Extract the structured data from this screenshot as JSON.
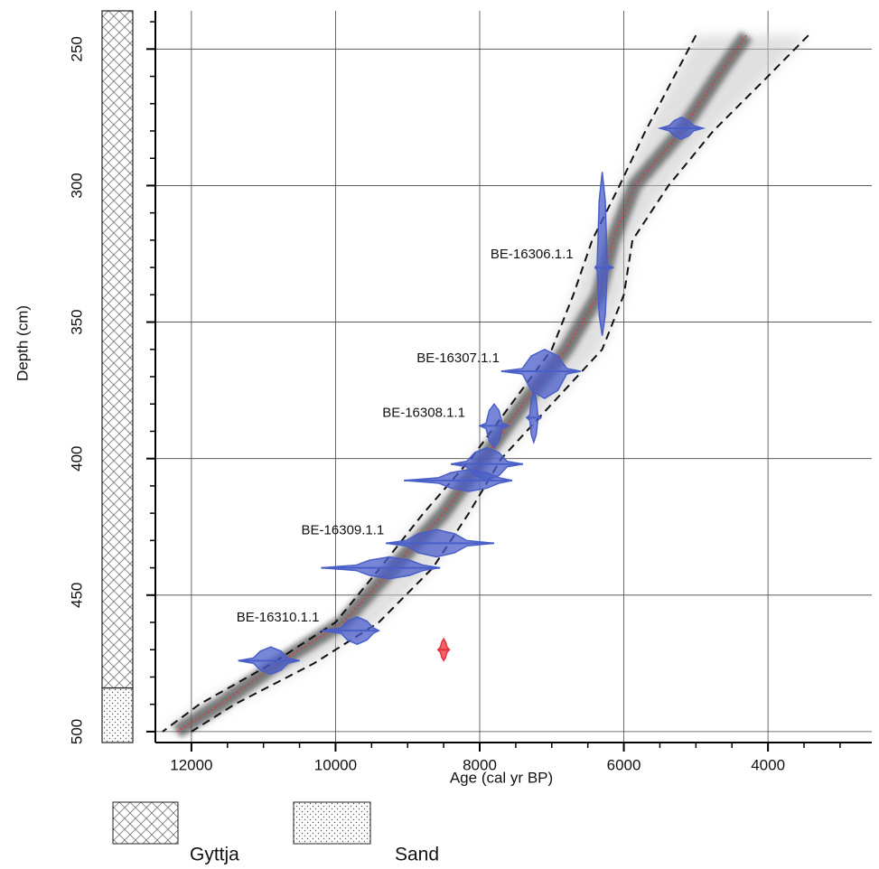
{
  "chart_data": {
    "type": "age-depth",
    "xlabel": "Age (cal yr BP)",
    "ylabel": "Depth (cm)",
    "xlim": [
      12500,
      2560
    ],
    "ylim": [
      236,
      504
    ],
    "y_inverted": true,
    "xticks": [
      12000,
      10000,
      8000,
      6000,
      4000
    ],
    "x_minor_ticks": [
      11500,
      11000,
      10500,
      9500,
      9000,
      8500,
      7500,
      7000,
      6500,
      5500,
      5000,
      4500,
      3500,
      3000
    ],
    "yticks": [
      250,
      300,
      350,
      400,
      450,
      500
    ],
    "y_minor_ticks": [
      240,
      260,
      270,
      280,
      290,
      310,
      320,
      330,
      340,
      360,
      370,
      380,
      390,
      410,
      420,
      430,
      440,
      460,
      470,
      480,
      490
    ],
    "grid": true,
    "lithology": [
      {
        "name": "Gyttja",
        "top": 236,
        "bottom": 484,
        "pattern": "crosshatch"
      },
      {
        "name": "Sand",
        "top": 484,
        "bottom": 504,
        "pattern": "dots"
      }
    ],
    "model": {
      "depths": [
        245,
        260,
        280,
        300,
        320,
        340,
        360,
        380,
        400,
        420,
        440,
        460,
        475,
        490,
        500
      ],
      "mean_age": [
        4300,
        4700,
        5200,
        5850,
        6150,
        6350,
        6800,
        7400,
        7950,
        8500,
        9200,
        9900,
        10800,
        11600,
        12200
      ],
      "age_old": [
        5000,
        5300,
        5700,
        6060,
        6440,
        6700,
        7000,
        7560,
        8120,
        8780,
        9380,
        10000,
        10880,
        11890,
        12400
      ],
      "age_young": [
        3440,
        4000,
        4760,
        5380,
        5880,
        6000,
        6300,
        7000,
        7700,
        8150,
        8650,
        9400,
        10300,
        11400,
        12000
      ],
      "mean_color": "#e03a3a",
      "bound_color": "#111111"
    },
    "dates_color": "#4a5ec8",
    "dates": [
      {
        "age": 5200,
        "depth": 279,
        "age_old": 5500,
        "age_young": 4900,
        "depth_top": 275,
        "depth_bottom": 283
      },
      {
        "label": "BE-16306.1.1",
        "age": 6300,
        "depth": 330,
        "age_old": 6400,
        "age_young": 6150,
        "depth_top": 295,
        "depth_bottom": 355
      },
      {
        "label": "BE-16307.1.1",
        "age": 7100,
        "depth": 368,
        "age_old": 7700,
        "age_young": 6600,
        "depth_top": 360,
        "depth_bottom": 378
      },
      {
        "age": 7250,
        "depth": 385,
        "age_old": 7350,
        "age_young": 7150,
        "depth_top": 375,
        "depth_bottom": 394
      },
      {
        "label": "BE-16308.1.1",
        "age": 7800,
        "depth": 388,
        "age_old": 8000,
        "age_young": 7600,
        "depth_top": 380,
        "depth_bottom": 396
      },
      {
        "age": 7900,
        "depth": 402,
        "age_old": 8400,
        "age_young": 7400,
        "depth_top": 396,
        "depth_bottom": 408
      },
      {
        "age": 8150,
        "depth": 408,
        "age_old": 9050,
        "age_young": 7550,
        "depth_top": 404,
        "depth_bottom": 412
      },
      {
        "label": "BE-16309.1.1",
        "age": 8600,
        "depth": 431,
        "age_old": 9300,
        "age_young": 7800,
        "depth_top": 426,
        "depth_bottom": 436
      },
      {
        "age": 9250,
        "depth": 440,
        "age_old": 10200,
        "age_young": 8550,
        "depth_top": 436,
        "depth_bottom": 444
      },
      {
        "label": "BE-16310.1.1",
        "age": 9700,
        "depth": 463,
        "age_old": 10200,
        "age_young": 9400,
        "depth_top": 458,
        "depth_bottom": 468
      },
      {
        "age": 10900,
        "depth": 474,
        "age_old": 11350,
        "age_young": 10500,
        "depth_top": 469,
        "depth_bottom": 479
      }
    ],
    "outlier": {
      "age": 8500,
      "depth": 470,
      "age_old": 8580,
      "age_young": 8420,
      "depth_top": 466,
      "depth_bottom": 474,
      "color": "#e8303a"
    }
  }
}
